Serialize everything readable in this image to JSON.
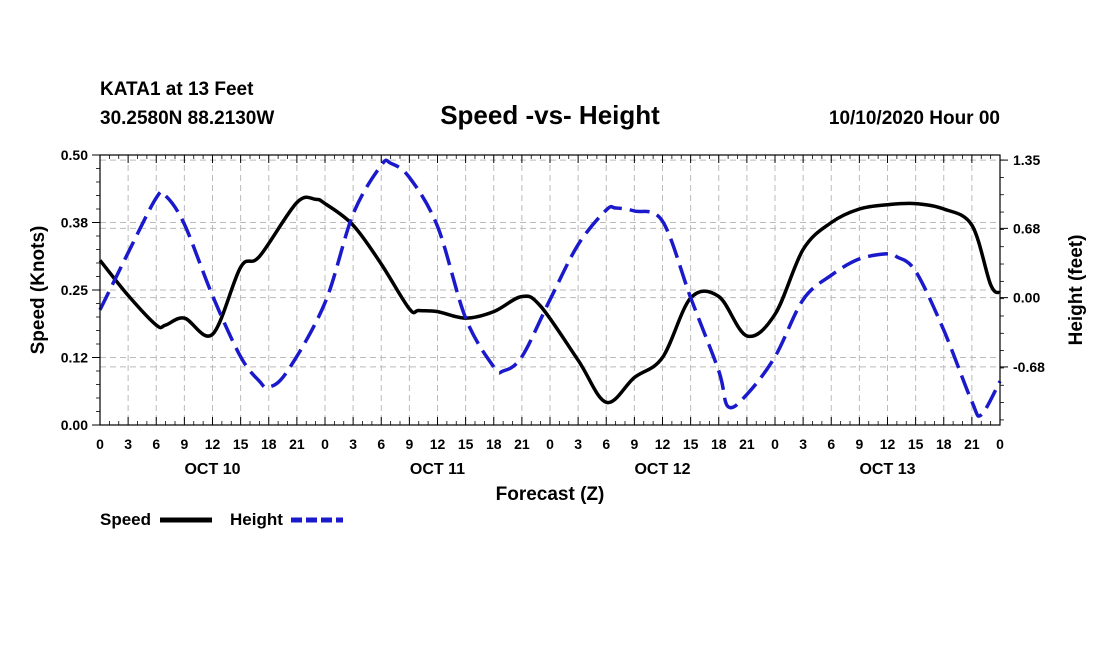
{
  "header": {
    "station": "KATA1 at 13 Feet",
    "coords": "30.2580N 88.2130W",
    "title": "Speed -vs- Height",
    "issued": "10/10/2020 Hour 00"
  },
  "legend": {
    "speed_label": "Speed",
    "height_label": "Height"
  },
  "colors": {
    "speed": "#000000",
    "height": "#1a1acc",
    "grid": "#bbbbbb"
  },
  "chart_data": {
    "type": "line",
    "title": "Speed -vs- Height",
    "xlabel": "Forecast (Z)",
    "ylabel": "Speed (Knots)",
    "y2label": "Height (feet)",
    "x_hours_range": [
      0,
      96
    ],
    "ylim": [
      0,
      0.5
    ],
    "y2lim": [
      -1.25,
      1.4
    ],
    "x_tick_hours": [
      0,
      3,
      6,
      9,
      12,
      15,
      18,
      21,
      24,
      27,
      30,
      33,
      36,
      39,
      42,
      45,
      48,
      51,
      54,
      57,
      60,
      63,
      66,
      69,
      72,
      75,
      78,
      81,
      84,
      87,
      90,
      93,
      96
    ],
    "x_tick_labels": [
      "0",
      "3",
      "6",
      "9",
      "12",
      "15",
      "18",
      "21",
      "0",
      "3",
      "6",
      "9",
      "12",
      "15",
      "18",
      "21",
      "0",
      "3",
      "6",
      "9",
      "12",
      "15",
      "18",
      "21",
      "0",
      "3",
      "6",
      "9",
      "12",
      "15",
      "18",
      "21",
      "0"
    ],
    "day_labels": [
      {
        "label": "OCT 10",
        "hour": 12
      },
      {
        "label": "OCT 11",
        "hour": 36
      },
      {
        "label": "OCT 12",
        "hour": 60
      },
      {
        "label": "OCT 13",
        "hour": 84
      }
    ],
    "y_ticks": [
      0,
      0.125,
      0.25,
      0.375,
      0.5
    ],
    "y_tick_labels": [
      "0.00",
      "0.12",
      "0.25",
      "0.38",
      "0.50"
    ],
    "y2_ticks": [
      -0.68,
      0,
      0.68,
      1.35
    ],
    "y2_tick_labels": [
      "-0.68",
      "0.00",
      "0.68",
      "1.35"
    ],
    "series": [
      {
        "name": "Speed",
        "axis": "left",
        "style": "solid",
        "x": [
          0,
          3,
          6,
          7,
          9,
          12,
          15,
          17,
          21,
          23,
          24,
          27,
          30,
          33,
          34,
          36,
          39,
          42,
          45,
          47,
          51,
          54,
          57,
          60,
          63,
          66,
          69,
          72,
          75,
          78,
          81,
          84,
          87,
          90,
          93,
          95,
          96
        ],
        "values": [
          0.305,
          0.24,
          0.185,
          0.185,
          0.198,
          0.168,
          0.292,
          0.312,
          0.412,
          0.418,
          0.41,
          0.37,
          0.298,
          0.215,
          0.212,
          0.21,
          0.198,
          0.21,
          0.238,
          0.22,
          0.12,
          0.042,
          0.088,
          0.125,
          0.235,
          0.238,
          0.165,
          0.205,
          0.325,
          0.375,
          0.4,
          0.408,
          0.41,
          0.4,
          0.37,
          0.26,
          0.245
        ]
      },
      {
        "name": "Height",
        "axis": "right",
        "style": "dashed",
        "x": [
          0,
          3,
          6,
          7,
          9,
          12,
          15,
          17,
          18,
          20,
          24,
          27,
          30,
          31,
          33,
          36,
          39,
          42,
          43,
          45,
          48,
          51,
          54,
          55,
          57,
          60,
          63,
          66,
          67,
          69,
          72,
          75,
          78,
          81,
          84,
          85,
          87,
          90,
          93,
          94,
          96
        ],
        "values": [
          -0.12,
          0.44,
          0.98,
          1.0,
          0.72,
          0.02,
          -0.58,
          -0.82,
          -0.88,
          -0.72,
          -0.05,
          0.82,
          1.3,
          1.32,
          1.18,
          0.7,
          -0.2,
          -0.68,
          -0.72,
          -0.58,
          -0.02,
          0.52,
          0.86,
          0.88,
          0.85,
          0.75,
          0.0,
          -0.72,
          -1.07,
          -0.95,
          -0.58,
          -0.02,
          0.22,
          0.38,
          0.43,
          0.4,
          0.26,
          -0.32,
          -1.02,
          -1.15,
          -0.82
        ]
      }
    ]
  }
}
